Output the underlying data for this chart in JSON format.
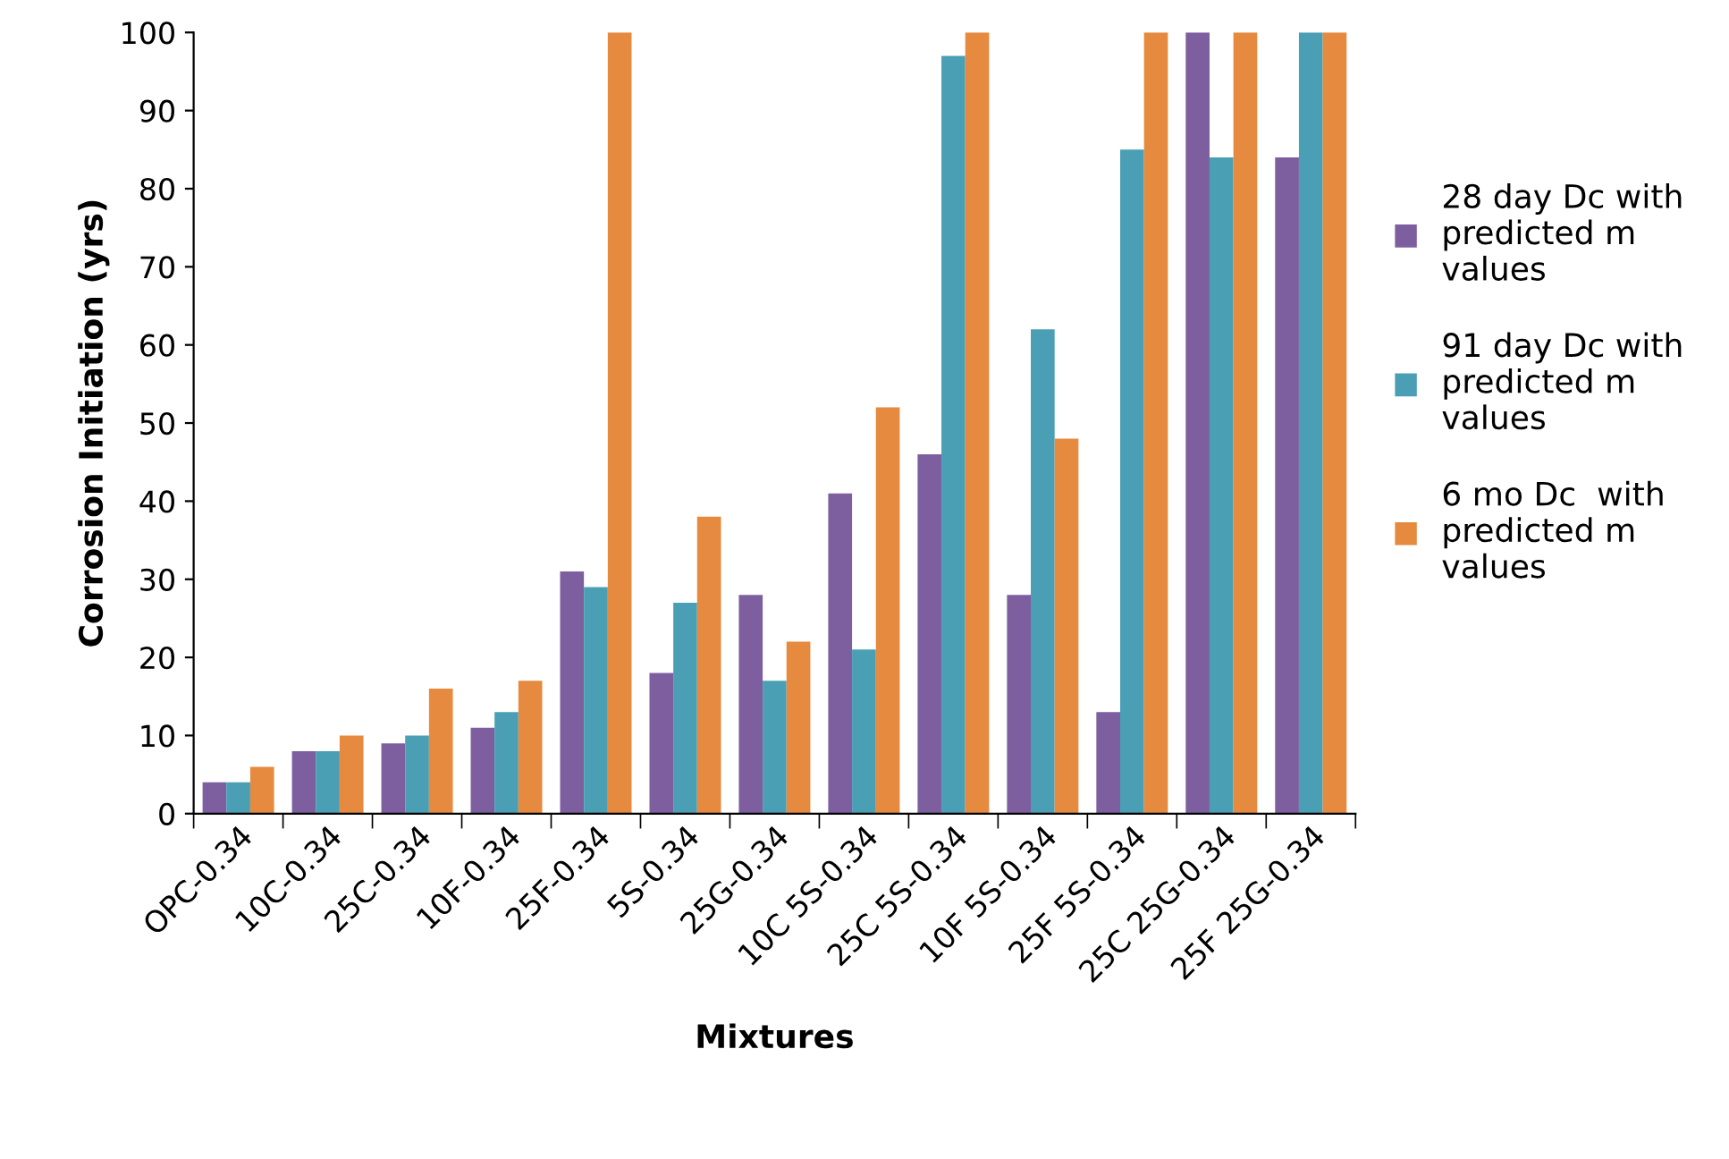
{
  "chart_data": {
    "type": "bar",
    "xlabel": "Mixtures",
    "ylabel": "Corrosion Initiation (yrs)",
    "categories": [
      "OPC-0.34",
      "10C-0.34",
      "25C-0.34",
      "10F-0.34",
      "25F-0.34",
      "5S-0.34",
      "25G-0.34",
      "10C 5S-0.34",
      "25C 5S-0.34",
      "10F 5S-0.34",
      "25F 5S-0.34",
      "25C 25G-0.34",
      "25F 25G-0.34"
    ],
    "series": [
      {
        "name": "28 day Dc with\npredicted m\nvalues",
        "color": "#7d5fa0",
        "values": [
          4,
          8,
          9,
          11,
          31,
          18,
          28,
          41,
          46,
          28,
          13,
          100,
          84
        ]
      },
      {
        "name": "91 day Dc with\npredicted m\nvalues",
        "color": "#4a9fb5",
        "values": [
          4,
          8,
          10,
          13,
          29,
          27,
          17,
          21,
          97,
          62,
          85,
          84,
          100
        ]
      },
      {
        "name": "6 mo Dc  with\npredicted m\nvalues",
        "color": "#e58a3e",
        "values": [
          6,
          10,
          16,
          17,
          100,
          38,
          22,
          52,
          100,
          48,
          100,
          100,
          100
        ]
      }
    ],
    "ylim": [
      0,
      100
    ],
    "yticks": [
      0,
      10,
      20,
      30,
      40,
      50,
      60,
      70,
      80,
      90,
      100
    ],
    "grid": false,
    "legend": "right"
  }
}
